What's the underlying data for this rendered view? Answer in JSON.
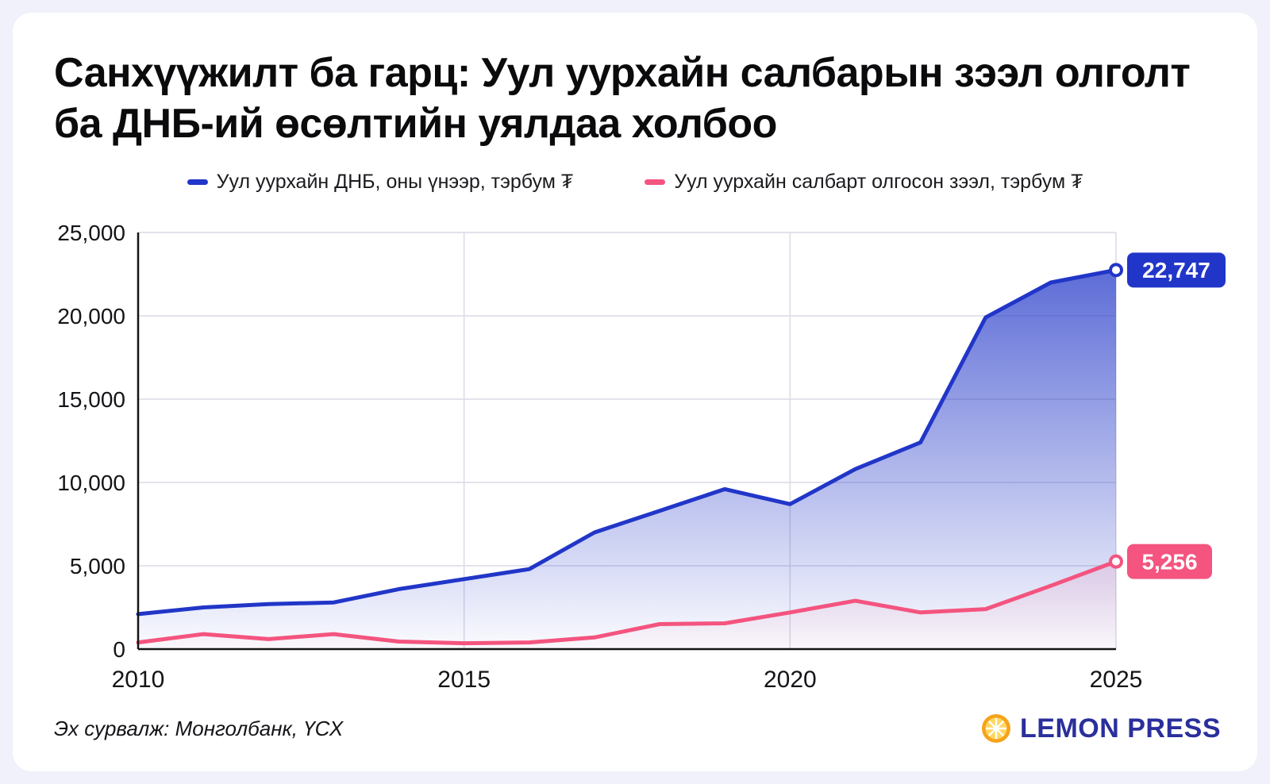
{
  "title": "Санхүүжилт ба гарц: Уул уурхайн салбарын зээл олголт ба ДНБ-ий өсөлтийн уялдаа холбоо",
  "legend": {
    "items": [
      {
        "label": "Уул уурхайн ДНБ, оны үнээр, тэрбум ₮",
        "color": "#2136c8"
      },
      {
        "label": "Уул уурхайн салбарт олгосон зээл, тэрбум ₮",
        "color": "#f4547f"
      }
    ]
  },
  "footer": {
    "source": "Эх сурвалж: Монголбанк, ҮСХ",
    "logo_text": "LEMON PRESS"
  },
  "colors": {
    "background": "#f1f1fb",
    "card": "#ffffff",
    "grid": "#d9dae6",
    "axis": "#141414",
    "tick_text": "#141418",
    "logo_navy": "#2a2f9c",
    "lemon_outer": "#f5a31b",
    "lemon_inner": "#ffd75e"
  },
  "chart_data": {
    "type": "area",
    "title": "Санхүүжилт ба гарц: Уул уурхайн салбарын зээл олголт ба ДНБ-ий өсөлтийн уялдаа холбоо",
    "x": [
      2010,
      2011,
      2012,
      2013,
      2014,
      2015,
      2016,
      2017,
      2018,
      2019,
      2020,
      2021,
      2022,
      2023,
      2024,
      2025
    ],
    "series": [
      {
        "name": "Уул уурхайн ДНБ, оны үнээр, тэрбум ₮",
        "color": "#2136c8",
        "values": [
          2100,
          2500,
          2700,
          2800,
          3600,
          4200,
          4800,
          7000,
          8300,
          9600,
          8700,
          10800,
          12400,
          19900,
          22000,
          22747
        ],
        "end_label": "22,747",
        "fill_opacity_top": 0.8,
        "fill_opacity_bottom": 0.02
      },
      {
        "name": "Уул уурхайн салбарт олгосон зээл, тэрбум ₮",
        "color": "#f4547f",
        "values": [
          400,
          900,
          600,
          900,
          450,
          350,
          400,
          700,
          1500,
          1550,
          2200,
          2900,
          2200,
          2400,
          3800,
          5256
        ],
        "end_label": "5,256",
        "fill_opacity_top": 0.55,
        "fill_opacity_bottom": 0.02
      }
    ],
    "xlabel": "",
    "ylabel": "",
    "ylim": [
      0,
      25000
    ],
    "yticks": [
      0,
      5000,
      10000,
      15000,
      20000,
      25000
    ],
    "ytick_labels": [
      "0",
      "5,000",
      "10,000",
      "15,000",
      "20,000",
      "25,000"
    ],
    "xticks": [
      2010,
      2015,
      2020,
      2025
    ],
    "x_gridlines": [
      2015,
      2020,
      2025
    ],
    "grid": true,
    "legend_position": "top"
  }
}
